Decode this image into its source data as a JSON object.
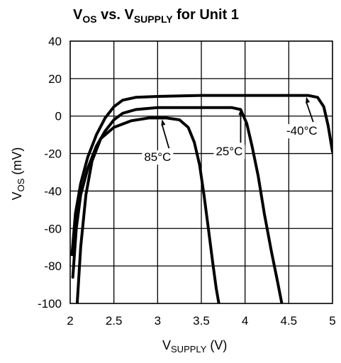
{
  "chart_data": {
    "type": "line",
    "title": {
      "parts": [
        {
          "text": "V",
          "sub": false
        },
        {
          "text": "OS",
          "sub": true
        },
        {
          "text": " vs. V",
          "sub": false
        },
        {
          "text": "SUPPLY",
          "sub": true
        },
        {
          "text": " for Unit 1",
          "sub": false
        }
      ]
    },
    "xlabel": {
      "parts": [
        {
          "text": "V",
          "sub": false
        },
        {
          "text": "SUPPLY",
          "sub": true
        },
        {
          "text": " (V)",
          "sub": false
        }
      ]
    },
    "ylabel": {
      "parts": [
        {
          "text": "V",
          "sub": false
        },
        {
          "text": "OS",
          "sub": true
        },
        {
          "text": " (mV)",
          "sub": false
        }
      ]
    },
    "xlim": [
      2,
      5
    ],
    "ylim": [
      -100,
      40
    ],
    "x_ticks": [
      2,
      2.5,
      3,
      3.5,
      4,
      4.5,
      5
    ],
    "x_tick_labels": [
      "2",
      "2.5",
      "3",
      "3.5",
      "4",
      "4.5",
      "5"
    ],
    "y_ticks": [
      40,
      20,
      0,
      -20,
      -40,
      -60,
      -80,
      -100
    ],
    "y_tick_labels": [
      "40",
      "20",
      "0",
      "-20",
      "-40",
      "-60",
      "-80",
      "-100"
    ],
    "grid": true,
    "series": [
      {
        "name": "85°C",
        "points": [
          [
            2.08,
            -100
          ],
          [
            2.12,
            -70
          ],
          [
            2.18,
            -42
          ],
          [
            2.25,
            -24
          ],
          [
            2.35,
            -12
          ],
          [
            2.5,
            -6
          ],
          [
            2.7,
            -2.5
          ],
          [
            2.9,
            -1
          ],
          [
            3.1,
            -1
          ],
          [
            3.25,
            -2
          ],
          [
            3.35,
            -6
          ],
          [
            3.42,
            -14
          ],
          [
            3.48,
            -26
          ],
          [
            3.53,
            -42
          ],
          [
            3.58,
            -60
          ],
          [
            3.63,
            -78
          ],
          [
            3.67,
            -92
          ],
          [
            3.7,
            -100
          ]
        ]
      },
      {
        "name": "25°C",
        "points": [
          [
            2.03,
            -86
          ],
          [
            2.07,
            -60
          ],
          [
            2.12,
            -42
          ],
          [
            2.2,
            -28
          ],
          [
            2.3,
            -16
          ],
          [
            2.4,
            -8
          ],
          [
            2.5,
            -2
          ],
          [
            2.6,
            1.5
          ],
          [
            2.75,
            3.5
          ],
          [
            3,
            4.5
          ],
          [
            3.5,
            4.5
          ],
          [
            3.85,
            4.5
          ],
          [
            3.95,
            3.5
          ],
          [
            4.02,
            -4
          ],
          [
            4.08,
            -16
          ],
          [
            4.15,
            -32
          ],
          [
            4.22,
            -52
          ],
          [
            4.3,
            -72
          ],
          [
            4.37,
            -88
          ],
          [
            4.42,
            -100
          ]
        ]
      },
      {
        "name": "-40°C",
        "points": [
          [
            2.02,
            -74
          ],
          [
            2.06,
            -52
          ],
          [
            2.12,
            -36
          ],
          [
            2.2,
            -22
          ],
          [
            2.3,
            -10
          ],
          [
            2.4,
            -1
          ],
          [
            2.5,
            5
          ],
          [
            2.6,
            8.5
          ],
          [
            2.75,
            10
          ],
          [
            3,
            10.5
          ],
          [
            3.5,
            11
          ],
          [
            4,
            11
          ],
          [
            4.5,
            11
          ],
          [
            4.72,
            11
          ],
          [
            4.83,
            10
          ],
          [
            4.9,
            5
          ],
          [
            4.95,
            -5
          ],
          [
            5,
            -19
          ]
        ]
      }
    ],
    "annotations": [
      {
        "text": "85°C",
        "x": 3.0,
        "y": -24,
        "arrow_to": [
          3.05,
          -1
        ]
      },
      {
        "text": "25°C",
        "x": 3.82,
        "y": -21,
        "arrow_to": [
          3.95,
          4.5
        ]
      },
      {
        "text": "-40°C",
        "x": 4.65,
        "y": -10,
        "arrow_to": [
          4.7,
          11
        ]
      }
    ]
  }
}
